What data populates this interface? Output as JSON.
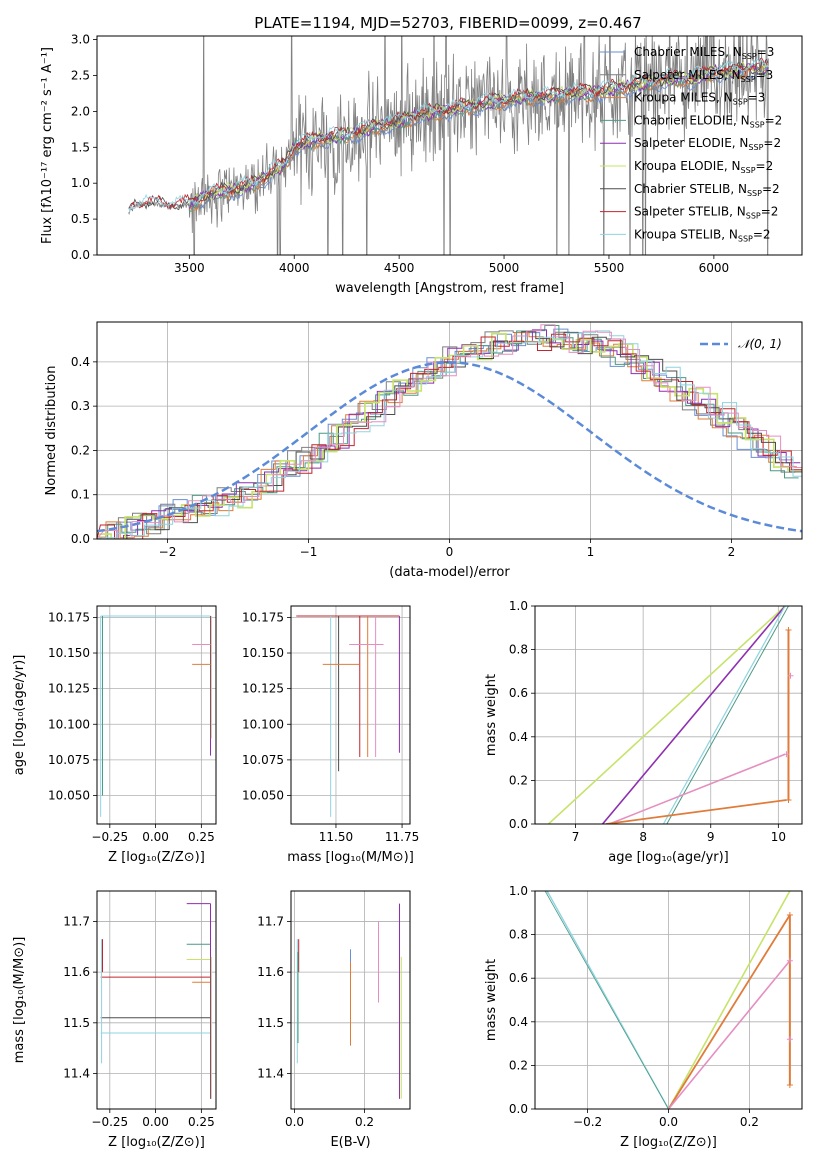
{
  "title": "PLATE=1194, MJD=52703, FIBERID=0099, z=0.467",
  "colors": {
    "chabrier_miles": "#6a8fd4",
    "salpeter_miles": "#7f7f7f",
    "kroupa_miles": "#e07b39",
    "chabrier_elodie": "#4c9a84",
    "salpeter_elodie": "#8e2fb0",
    "kroupa_elodie": "#c6e36a",
    "chabrier_stelib": "#4d4d4d",
    "salpeter_stelib": "#c0262f",
    "kroupa_stelib": "#8fd4e0",
    "pink_model": "#e58ec0",
    "gaussian": "#5b8bd8"
  },
  "chart_data": [
    {
      "id": "spectrum",
      "type": "line",
      "title": "PLATE=1194, MJD=52703, FIBERID=0099, z=0.467",
      "xlabel": "wavelength [Angstrom, rest frame]",
      "ylabel": "Flux [fλ10⁻¹⁷ erg cm⁻² s⁻¹ A⁻¹]",
      "xlim": [
        3060,
        6420
      ],
      "ylim": [
        0,
        3.05
      ],
      "xticks": [
        "3500",
        "4000",
        "4500",
        "5000",
        "5500",
        "6000"
      ],
      "yticks": [
        "0.0",
        "0.5",
        "1.0",
        "1.5",
        "2.0",
        "2.5",
        "3.0"
      ],
      "legend_position": "right",
      "series": [
        {
          "name": "Chabrier MILES, N_SSP=3",
          "label": "Chabrier MILES, N",
          "sub": "SSP",
          "tail": "=3"
        },
        {
          "name": "Salpeter MILES, N_SSP=3",
          "label": "Salpeter MILES, N",
          "sub": "SSP",
          "tail": "=3"
        },
        {
          "name": "Kroupa MILES, N_SSP=3",
          "label": "Kroupa MILES, N",
          "sub": "SSP",
          "tail": "=3"
        },
        {
          "name": "Chabrier ELODIE, N_SSP=2",
          "label": "Chabrier ELODIE, N",
          "sub": "SSP",
          "tail": "=2"
        },
        {
          "name": "Salpeter ELODIE, N_SSP=2",
          "label": "Salpeter ELODIE, N",
          "sub": "SSP",
          "tail": "=2"
        },
        {
          "name": "Kroupa ELODIE, N_SSP=2",
          "label": "Kroupa ELODIE, N",
          "sub": "SSP",
          "tail": "=2"
        },
        {
          "name": "Chabrier STELIB, N_SSP=2",
          "label": "Chabrier STELIB, N",
          "sub": "SSP",
          "tail": "=2"
        },
        {
          "name": "Salpeter STELIB, N_SSP=2",
          "label": "Salpeter STELIB, N",
          "sub": "SSP",
          "tail": "=2"
        },
        {
          "name": "Kroupa STELIB, N_SSP=2",
          "label": "Kroupa STELIB, N",
          "sub": "SSP",
          "tail": "=2"
        }
      ],
      "continuum": [
        [
          3210,
          0.58
        ],
        [
          3250,
          0.7
        ],
        [
          3300,
          0.72
        ],
        [
          3400,
          0.68
        ],
        [
          3500,
          0.7
        ],
        [
          3600,
          0.85
        ],
        [
          3700,
          0.9
        ],
        [
          3800,
          0.98
        ],
        [
          3900,
          1.15
        ],
        [
          3950,
          1.25
        ],
        [
          4000,
          1.5
        ],
        [
          4100,
          1.6
        ],
        [
          4200,
          1.65
        ],
        [
          4300,
          1.7
        ],
        [
          4400,
          1.8
        ],
        [
          4500,
          1.85
        ],
        [
          4600,
          1.95
        ],
        [
          4700,
          2.0
        ],
        [
          4800,
          2.05
        ],
        [
          4900,
          2.1
        ],
        [
          5000,
          2.15
        ],
        [
          5100,
          2.2
        ],
        [
          5200,
          2.2
        ],
        [
          5300,
          2.25
        ],
        [
          5400,
          2.25
        ],
        [
          5500,
          2.3
        ],
        [
          5600,
          2.35
        ],
        [
          5700,
          2.4
        ],
        [
          5800,
          2.45
        ],
        [
          5900,
          2.45
        ],
        [
          6000,
          2.55
        ],
        [
          6100,
          2.55
        ],
        [
          6200,
          2.6
        ],
        [
          6260,
          2.6
        ]
      ]
    },
    {
      "id": "residual-histogram",
      "type": "line",
      "xlabel": "(data-model)/error",
      "ylabel": "Normed distribution",
      "xlim": [
        -2.5,
        2.5
      ],
      "ylim": [
        0,
        0.49
      ],
      "xticks": [
        "−2",
        "−1",
        "0",
        "1",
        "2"
      ],
      "yticks": [
        "0.0",
        "0.1",
        "0.2",
        "0.3",
        "0.4"
      ],
      "grid": true,
      "legend_position": "top-right",
      "legend": "𝒩(0, 1)",
      "bin_width": 0.1,
      "bin_start": -2.5,
      "histogram": [
        0.005,
        0.01,
        0.02,
        0.03,
        0.04,
        0.05,
        0.06,
        0.07,
        0.08,
        0.09,
        0.1,
        0.115,
        0.13,
        0.15,
        0.17,
        0.19,
        0.21,
        0.235,
        0.26,
        0.285,
        0.31,
        0.33,
        0.35,
        0.37,
        0.39,
        0.405,
        0.42,
        0.43,
        0.44,
        0.445,
        0.45,
        0.455,
        0.455,
        0.45,
        0.445,
        0.44,
        0.43,
        0.415,
        0.4,
        0.38,
        0.36,
        0.34,
        0.32,
        0.3,
        0.28,
        0.255,
        0.23,
        0.205,
        0.18,
        0.16
      ]
    },
    {
      "id": "age-vs-z",
      "type": "scatter",
      "xlabel": "Z [log₁₀(Z/Z⊙)]",
      "ylabel": "age  [log₁₀(age/yr)]",
      "xlim": [
        -0.32,
        0.33
      ],
      "ylim": [
        10.03,
        10.183
      ],
      "xticks": [
        "−0.25",
        "0.00",
        "0.25"
      ],
      "yticks": [
        "10.050",
        "10.075",
        "10.100",
        "10.125",
        "10.150",
        "10.175"
      ],
      "grid": true
    },
    {
      "id": "age-vs-mass",
      "type": "scatter",
      "xlabel": "mass [log₁₀(M/M⊙)]",
      "xlim": [
        11.33,
        11.78
      ],
      "ylim": [
        10.03,
        10.183
      ],
      "xticks": [
        "11.50",
        "11.75"
      ],
      "yticks": [
        "10.050",
        "10.075",
        "10.100",
        "10.125",
        "10.150",
        "10.175"
      ],
      "grid": true
    },
    {
      "id": "massweight-vs-age",
      "type": "line",
      "xlabel": "age  [log₁₀(age/yr)]",
      "ylabel": "mass weight",
      "xlim": [
        6.4,
        10.35
      ],
      "ylim": [
        0,
        1
      ],
      "xticks": [
        "7",
        "8",
        "9",
        "10"
      ],
      "yticks": [
        "0.0",
        "0.2",
        "0.4",
        "0.6",
        "0.8",
        "1.0"
      ],
      "grid": true
    },
    {
      "id": "mass-vs-z",
      "type": "scatter",
      "xlabel": "Z [log₁₀(Z/Z⊙)]",
      "ylabel": "mass [log₁₀(M/M⊙)]",
      "xlim": [
        -0.32,
        0.33
      ],
      "ylim": [
        11.33,
        11.76
      ],
      "xticks": [
        "−0.25",
        "0.00",
        "0.25"
      ],
      "yticks": [
        "11.4",
        "11.5",
        "11.6",
        "11.7"
      ],
      "grid": true
    },
    {
      "id": "mass-vs-ebv",
      "type": "scatter",
      "xlabel": "E(B-V)",
      "xlim": [
        -0.01,
        0.33
      ],
      "ylim": [
        11.33,
        11.76
      ],
      "xticks": [
        "0.0",
        "0.2"
      ],
      "yticks": [
        "11.4",
        "11.5",
        "11.6",
        "11.7"
      ],
      "grid": true
    },
    {
      "id": "massweight-vs-z",
      "type": "line",
      "xlabel": "Z [log₁₀(Z/Z⊙)]",
      "ylabel": "mass weight",
      "xlim": [
        -0.33,
        0.33
      ],
      "ylim": [
        0,
        1
      ],
      "xticks": [
        "−0.2",
        "0.0",
        "0.2"
      ],
      "yticks": [
        "0.0",
        "0.2",
        "0.4",
        "0.6",
        "0.8",
        "1.0"
      ],
      "grid": true
    }
  ]
}
